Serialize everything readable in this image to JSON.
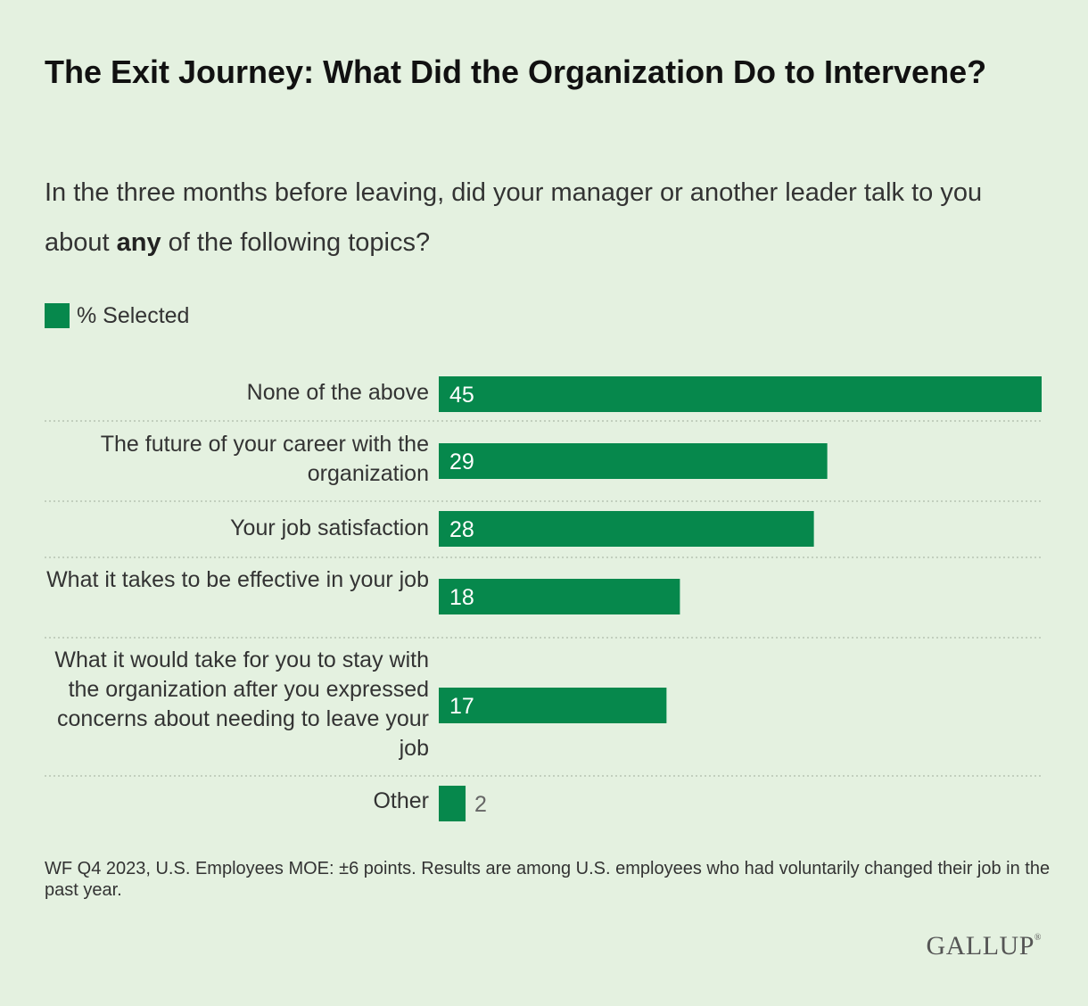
{
  "title": "The Exit Journey: What Did the Organization Do to Intervene?",
  "subtitle": {
    "before": "In the three months before leaving, did your manager or another leader talk to you about ",
    "bold": "any",
    "after": " of the following topics?"
  },
  "chart_data": {
    "type": "bar",
    "orientation": "horizontal",
    "categories": [
      "None of the above",
      "The future of your career with the organization",
      "Your job satisfaction",
      "What it takes to be effective in your job",
      "What it would take for you to stay with the organization after you expressed concerns about needing to leave your job",
      "Other"
    ],
    "series": [
      {
        "name": "% Selected",
        "values": [
          45,
          29,
          28,
          18,
          17,
          2
        ]
      }
    ],
    "xlim": [
      0,
      45
    ],
    "grid": false,
    "legend": "top-left",
    "data_labels": true
  },
  "colors": {
    "bar": "#06884c",
    "background": "#e4f1e0",
    "separator": "#b7c4b3"
  },
  "footnote": "WF Q4 2023, U.S. Employees MOE: ±6 points. Results are among U.S. employees who had voluntarily changed their job in the past year.",
  "logo": "GALLUP"
}
